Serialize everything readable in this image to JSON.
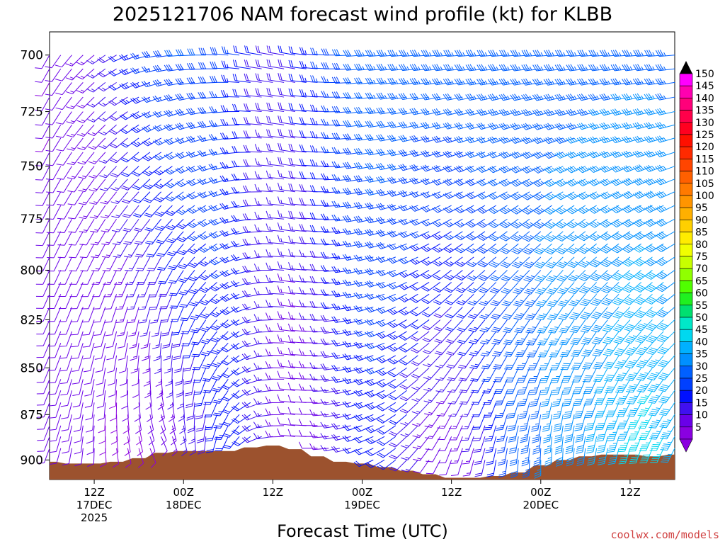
{
  "chart_data": {
    "type": "wind-barb-profile",
    "title": "2025121706 NAM forecast wind profile (kt) for KLBB",
    "xlabel": "Forecast Time (UTC)",
    "credit": "coolwx.com/models",
    "y_axis": {
      "label": "",
      "ticks": [
        "700",
        "725",
        "750",
        "775",
        "800",
        "825",
        "850",
        "875",
        "900"
      ],
      "range": [
        690,
        911
      ],
      "inverted": true
    },
    "x_axis": {
      "range_hours": [
        6,
        90
      ],
      "ticks": [
        {
          "time": "12Z",
          "date": "17DEC",
          "year": "2025"
        },
        {
          "time": "00Z",
          "date": "18DEC",
          "year": ""
        },
        {
          "time": "12Z",
          "date": "",
          "year": ""
        },
        {
          "time": "00Z",
          "date": "19DEC",
          "year": ""
        },
        {
          "time": "12Z",
          "date": "",
          "year": ""
        },
        {
          "time": "00Z",
          "date": "20DEC",
          "year": ""
        },
        {
          "time": "12Z",
          "date": "",
          "year": ""
        }
      ]
    },
    "colorbar": {
      "labels": [
        "150",
        "145",
        "140",
        "135",
        "130",
        "125",
        "120",
        "115",
        "110",
        "105",
        "100",
        "95",
        "90",
        "85",
        "80",
        "75",
        "70",
        "65",
        "60",
        "55",
        "50",
        "45",
        "40",
        "35",
        "30",
        "25",
        "20",
        "15",
        "10",
        "5"
      ],
      "colors": [
        "#ff00ff",
        "#ff00b0",
        "#ff007a",
        "#ff004a",
        "#ff0020",
        "#ff1000",
        "#ff2a00",
        "#ff4500",
        "#ff6000",
        "#ff7a00",
        "#ff9500",
        "#ffb000",
        "#ffd000",
        "#ffec00",
        "#f0ff00",
        "#c8ff00",
        "#90ff00",
        "#50ff00",
        "#20f020",
        "#00e070",
        "#00e8c8",
        "#00d8f0",
        "#00b0ff",
        "#0090ff",
        "#0060ff",
        "#0040ff",
        "#0010ff",
        "#4010f0",
        "#6a00e8",
        "#8a00e0"
      ]
    },
    "surface_pressure": {
      "hours": [
        6,
        9,
        12,
        15,
        18,
        21,
        24,
        27,
        30,
        33,
        36,
        39,
        42,
        45,
        48,
        51,
        54,
        57,
        60,
        63,
        66,
        69,
        72,
        75,
        78,
        81,
        84,
        87,
        90
      ],
      "values": [
        901,
        902,
        902,
        901,
        899,
        896,
        895,
        895,
        895,
        893,
        892,
        894,
        898,
        901,
        902,
        904,
        906,
        908,
        910,
        910,
        909,
        907,
        903,
        900,
        898,
        897,
        897,
        898,
        897
      ]
    },
    "levels_mb": [
      700,
      712,
      725,
      737,
      750,
      762,
      775,
      787,
      800,
      812,
      825,
      837,
      850,
      862,
      875,
      887,
      900
    ],
    "hours": [
      6,
      9,
      12,
      15,
      18,
      21,
      24,
      27,
      30,
      33,
      36,
      39,
      42,
      45,
      48,
      51,
      54,
      57,
      60,
      63,
      66,
      69,
      72,
      75,
      78,
      81,
      84,
      87,
      90
    ],
    "wind_note": "speed kt; direction degrees (from)",
    "wind_dir_profile": {
      "low_levels": [
        200,
        190,
        180,
        170,
        160,
        150,
        160,
        180,
        200,
        230,
        260,
        275,
        270,
        260,
        250,
        240,
        225,
        215,
        200,
        195,
        190,
        185,
        180,
        180,
        185,
        190,
        195,
        200,
        205
      ],
      "upper_levels": [
        210,
        220,
        230,
        240,
        250,
        260,
        265,
        270,
        275,
        280,
        280,
        280,
        275,
        270,
        265,
        265,
        265,
        265,
        265,
        265,
        265,
        265,
        265,
        265,
        265,
        265,
        265,
        265,
        265
      ]
    },
    "wind_speed_profile": {
      "low_levels": [
        10,
        12,
        10,
        8,
        8,
        10,
        14,
        18,
        22,
        20,
        15,
        10,
        10,
        15,
        20,
        22,
        18,
        12,
        10,
        14,
        22,
        30,
        35,
        38,
        40,
        42,
        46,
        48,
        44
      ],
      "upper_levels": [
        10,
        12,
        14,
        18,
        24,
        28,
        30,
        30,
        28,
        22,
        18,
        20,
        24,
        28,
        32,
        34,
        34,
        34,
        34,
        34,
        34,
        34,
        34,
        34,
        34,
        34,
        34,
        34,
        34
      ]
    }
  }
}
